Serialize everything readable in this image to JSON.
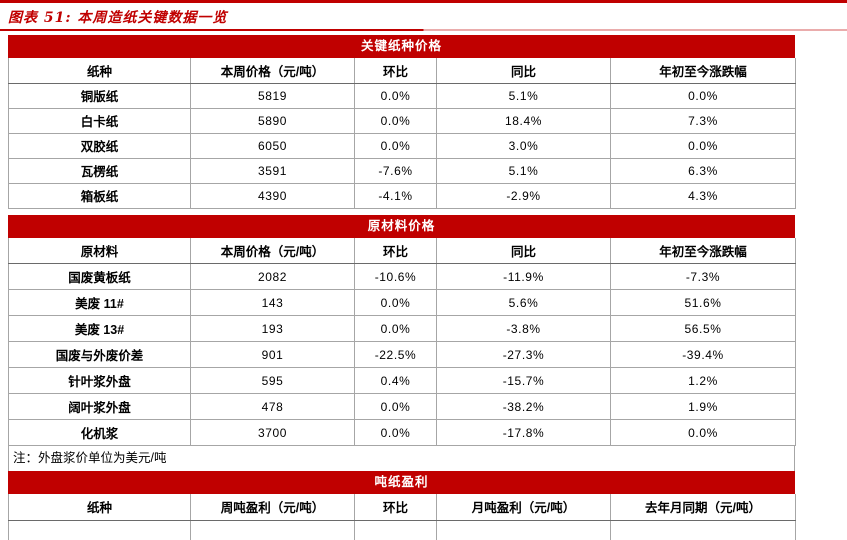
{
  "title": "图表 51: 本周造纸关键数据一览",
  "note": "注：外盘浆价单位为美元/吨",
  "colors": {
    "accent_red": "#c00000",
    "underline_fade": "#eaacac",
    "border_gray": "#a6a6a6",
    "band_text": "#ffffff"
  },
  "chart_data": [
    {
      "type": "table",
      "title": "关键纸种价格",
      "columns": [
        "纸种",
        "本周价格（元/吨）",
        "环比",
        "同比",
        "年初至今涨跌幅"
      ],
      "rows": [
        [
          "铜版纸",
          "5819",
          "0.0%",
          "5.1%",
          "0.0%"
        ],
        [
          "白卡纸",
          "5890",
          "0.0%",
          "18.4%",
          "7.3%"
        ],
        [
          "双胶纸",
          "6050",
          "0.0%",
          "3.0%",
          "0.0%"
        ],
        [
          "瓦楞纸",
          "3591",
          "-7.6%",
          "5.1%",
          "6.3%"
        ],
        [
          "箱板纸",
          "4390",
          "-4.1%",
          "-2.9%",
          "4.3%"
        ]
      ]
    },
    {
      "type": "table",
      "title": "原材料价格",
      "columns": [
        "原材料",
        "本周价格（元/吨）",
        "环比",
        "同比",
        "年初至今涨跌幅"
      ],
      "rows": [
        [
          "国废黄板纸",
          "2082",
          "-10.6%",
          "-11.9%",
          "-7.3%"
        ],
        [
          "美废 11#",
          "143",
          "0.0%",
          "5.6%",
          "51.6%"
        ],
        [
          "美废 13#",
          "193",
          "0.0%",
          "-3.8%",
          "56.5%"
        ],
        [
          "国废与外废价差",
          "901",
          "-22.5%",
          "-27.3%",
          "-39.4%"
        ],
        [
          "针叶浆外盘",
          "595",
          "0.4%",
          "-15.7%",
          "1.2%"
        ],
        [
          "阔叶浆外盘",
          "478",
          "0.0%",
          "-38.2%",
          "1.9%"
        ],
        [
          "化机浆",
          "3700",
          "0.0%",
          "-17.8%",
          "0.0%"
        ]
      ],
      "note": "注：外盘浆价单位为美元/吨"
    },
    {
      "type": "table",
      "title": "吨纸盈利",
      "columns": [
        "纸种",
        "周吨盈利（元/吨）",
        "环比",
        "月吨盈利（元/吨）",
        "去年月同期（元/吨）"
      ],
      "rows": []
    }
  ]
}
